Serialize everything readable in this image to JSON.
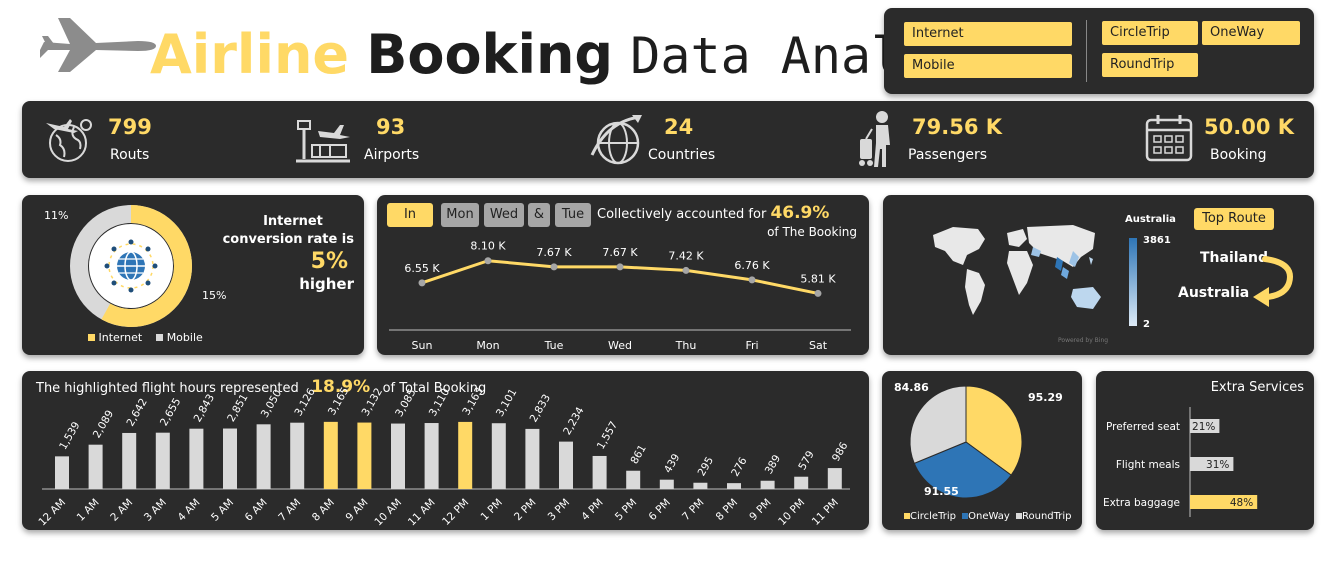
{
  "header": {
    "title_part1": "Airline",
    "title_part2": "Booking",
    "title_part3": "Data Analysis"
  },
  "slicers": {
    "channel": [
      "Internet",
      "Mobile"
    ],
    "trip_type": [
      "CircleTrip",
      "OneWay",
      "RoundTrip"
    ]
  },
  "kpis": [
    {
      "value": "799",
      "label": "Routs",
      "icon": "globe-plane-icon"
    },
    {
      "value": "93",
      "label": "Airports",
      "icon": "airport-icon"
    },
    {
      "value": "24",
      "label": "Countries",
      "icon": "globe-icon"
    },
    {
      "value": "79.56 K",
      "label": "Passengers",
      "icon": "passenger-icon"
    },
    {
      "value": "50.00 K",
      "label": "Booking",
      "icon": "calendar-icon"
    }
  ],
  "donut": {
    "labels": {
      "mobile_pct": "11%",
      "internet_pct": "15%"
    },
    "legend": [
      "Internet",
      "Mobile"
    ],
    "colors": {
      "internet": "#ffd966",
      "mobile": "#d9d9d9"
    },
    "text_line1": "Internet",
    "text_line2": "conversion rate is",
    "highlight": "5%",
    "text_line3": "higher"
  },
  "weekday": {
    "buttons": [
      "In",
      "Mon",
      "Wed",
      "&",
      "Tue"
    ],
    "caption_prefix": "Collectively accounted for",
    "caption_pct": "46.9%",
    "caption_suffix": "of The Booking",
    "chart_data": {
      "type": "line",
      "categories": [
        "Sun",
        "Mon",
        "Tue",
        "Wed",
        "Thu",
        "Fri",
        "Sat"
      ],
      "values": [
        6.55,
        8.1,
        7.67,
        7.67,
        7.42,
        6.76,
        5.81
      ],
      "data_labels": [
        "6.55 K",
        "8.10 K",
        "7.67 K",
        "7.67 K",
        "7.42 K",
        "6.76 K",
        "5.81 K"
      ],
      "ylim": [
        0,
        10
      ]
    }
  },
  "map": {
    "legend_title": "Australia",
    "legend_max": "3861",
    "legend_min": "2",
    "button": "Top Route",
    "from": "Thailand",
    "to": "Australia",
    "credit": "Powered by Bing"
  },
  "hours": {
    "caption_prefix": "The highlighted flight hours represented",
    "caption_pct": "18.9%",
    "caption_suffix": "of Total Booking",
    "chart_data": {
      "type": "bar",
      "categories": [
        "12 AM",
        "1 AM",
        "2 AM",
        "3 AM",
        "4 AM",
        "5 AM",
        "6 AM",
        "7 AM",
        "8 AM",
        "9 AM",
        "10 AM",
        "11 AM",
        "12 PM",
        "1 PM",
        "2 PM",
        "3 PM",
        "4 PM",
        "5 PM",
        "6 PM",
        "7 PM",
        "8 PM",
        "9 PM",
        "10 PM",
        "11 PM"
      ],
      "values": [
        1539,
        2089,
        2642,
        2655,
        2843,
        2851,
        3050,
        3126,
        3165,
        3132,
        3085,
        3110,
        3163,
        3101,
        2833,
        2234,
        1557,
        861,
        439,
        295,
        276,
        389,
        579,
        986
      ],
      "data_labels": [
        "1,539",
        "2,089",
        "2,642",
        "2,655",
        "2,843",
        "2,851",
        "3,050",
        "3,126",
        "3,165",
        "3,132",
        "3,085",
        "3,110",
        "3,163",
        "3,101",
        "2,833",
        "2,234",
        "1,557",
        "861",
        "439",
        "295",
        "276",
        "389",
        "579",
        "986"
      ],
      "highlighted": [
        "8 AM",
        "9 AM",
        "12 PM"
      ],
      "colors": {
        "normal": "#d9d9d9",
        "highlight": "#ffd966"
      },
      "ylim": [
        0,
        3300
      ]
    }
  },
  "pie": {
    "chart_data": {
      "type": "pie",
      "categories": [
        "CircleTrip",
        "OneWay",
        "RoundTrip"
      ],
      "values": [
        95.29,
        91.55,
        84.86
      ],
      "data_labels": [
        "95.29",
        "91.55",
        "84.86"
      ],
      "colors": [
        "#ffd966",
        "#2e75b6",
        "#d9d9d9"
      ]
    },
    "legend": [
      "CircleTrip",
      "OneWay",
      "RoundTrip"
    ]
  },
  "extras": {
    "title": "Extra Services",
    "chart_data": {
      "type": "bar",
      "categories": [
        "Preferred seat",
        "Flight meals",
        "Extra baggage"
      ],
      "values": [
        21,
        31,
        48
      ],
      "data_labels": [
        "21%",
        "31%",
        "48%"
      ],
      "highlighted": [
        "Extra baggage"
      ],
      "xlim": [
        0,
        100
      ]
    }
  }
}
